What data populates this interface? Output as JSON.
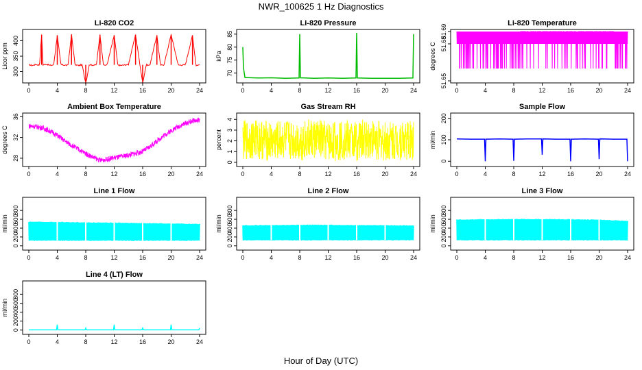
{
  "figure": {
    "title": "NWR_100625  1 Hz Diagnostics",
    "xlabel": "Hour of Day (UTC)"
  },
  "chart_data": [
    {
      "type": "line",
      "title": "Li-820 CO2",
      "ylabel": "Licor ppm",
      "color": "#ff0000",
      "xlim": [
        0,
        24
      ],
      "xticks": [
        0,
        4,
        8,
        12,
        16,
        20,
        24
      ],
      "ylim": [
        270,
        430
      ],
      "yticks": [
        300,
        350,
        400
      ],
      "x": [
        0,
        0.5,
        1,
        1.5,
        1.8,
        2,
        2.5,
        3,
        3.5,
        4,
        4.5,
        5,
        5.5,
        6,
        6.5,
        7,
        7.5,
        8,
        8.5,
        9,
        9.5,
        10,
        10.5,
        11,
        12,
        12.5,
        13,
        14,
        15,
        16,
        16.5,
        17,
        18,
        18.5,
        19,
        20,
        21,
        22,
        23,
        23.5,
        24
      ],
      "values": [
        322,
        320,
        323,
        321,
        420,
        322,
        324,
        320,
        322,
        418,
        323,
        321,
        320,
        420,
        322,
        320,
        322,
        260,
        323,
        321,
        322,
        420,
        320,
        322,
        418,
        321,
        320,
        323,
        420,
        262,
        322,
        320,
        418,
        321,
        322,
        420,
        321,
        322,
        418,
        320,
        322
      ]
    },
    {
      "type": "line",
      "title": "Li-820 Pressure",
      "ylabel": "kPa",
      "color": "#00bb00",
      "xlim": [
        0,
        24
      ],
      "xticks": [
        0,
        4,
        8,
        12,
        16,
        20,
        24
      ],
      "ylim": [
        67,
        86
      ],
      "yticks": [
        70,
        75,
        80,
        85
      ],
      "x": [
        0,
        0.1,
        0.3,
        2,
        4,
        6,
        7.9,
        8,
        8.1,
        10,
        12,
        14,
        15.9,
        16,
        16.1,
        18,
        20,
        22,
        23.9,
        24
      ],
      "values": [
        80,
        72,
        68.3,
        68.1,
        68.2,
        68.0,
        68.1,
        85,
        68.2,
        68.0,
        68.1,
        68.0,
        68.1,
        85.5,
        68.1,
        68.0,
        68.0,
        68.0,
        68.1,
        85
      ]
    },
    {
      "type": "line",
      "title": "Li-820 Temperature",
      "ylabel": "degrees C",
      "color": "#ff00ff",
      "xlim": [
        0,
        24
      ],
      "xticks": [
        0,
        4,
        8,
        12,
        16,
        20,
        24
      ],
      "ylim": [
        51.65,
        51.69
      ],
      "yticks": [
        51.65,
        51.68,
        51.69
      ],
      "x": [
        0,
        2,
        4,
        6,
        8,
        10,
        12,
        14,
        16,
        18,
        20,
        22,
        24
      ],
      "values": [
        51.66,
        51.69,
        51.66,
        51.69,
        51.66,
        51.69,
        51.66,
        51.69,
        51.66,
        51.69,
        51.66,
        51.69,
        51.68
      ]
    },
    {
      "type": "line",
      "title": "Ambient Box Temperature",
      "ylabel": "degrees C",
      "color": "#ff00ff",
      "xlim": [
        0,
        24
      ],
      "xticks": [
        0,
        4,
        8,
        12,
        16,
        20,
        24
      ],
      "ylim": [
        26.8,
        36.3
      ],
      "yticks": [
        28,
        32,
        36
      ],
      "x": [
        0,
        1,
        2,
        3,
        4,
        5,
        6,
        7,
        8,
        9,
        10,
        11,
        12,
        13,
        14,
        15,
        16,
        17,
        18,
        19,
        20,
        21,
        22,
        23,
        24
      ],
      "values": [
        34.2,
        34.1,
        33.8,
        33.2,
        32.4,
        31.4,
        30.5,
        29.7,
        28.9,
        28.2,
        27.6,
        27.8,
        28.1,
        28.3,
        28.6,
        28.9,
        29.3,
        30.2,
        31.3,
        32.4,
        33.3,
        34.1,
        34.7,
        35.2,
        35.3
      ]
    },
    {
      "type": "line",
      "title": "Gas Stream RH",
      "ylabel": "percent",
      "color": "#ffff00",
      "xlim": [
        0,
        24
      ],
      "xticks": [
        0,
        4,
        8,
        12,
        16,
        20,
        24
      ],
      "ylim": [
        -0.2,
        4.4
      ],
      "yticks": [
        0,
        1,
        2,
        3,
        4
      ],
      "x": [
        0,
        2,
        4,
        6,
        8,
        10,
        12,
        14,
        16,
        18,
        20,
        22,
        24
      ],
      "values": [
        2.0,
        2.2,
        1.9,
        2.1,
        2.0,
        2.2,
        1.9,
        2.1,
        2.0,
        2.2,
        1.9,
        2.1,
        2.0
      ]
    },
    {
      "type": "line",
      "title": "Sample Flow",
      "ylabel": "ml/min",
      "color": "#0000ff",
      "xlim": [
        0,
        24
      ],
      "xticks": [
        0,
        4,
        8,
        12,
        16,
        20,
        24
      ],
      "ylim": [
        -15,
        215
      ],
      "yticks": [
        0,
        100,
        200
      ],
      "x": [
        0,
        2,
        3.9,
        4,
        4.1,
        6,
        7.9,
        8,
        8.1,
        10,
        11.9,
        12,
        12.1,
        14,
        15.9,
        16,
        16.1,
        18,
        19.9,
        20,
        20.1,
        22,
        23.9,
        24
      ],
      "values": [
        104,
        103,
        103,
        0,
        103,
        104,
        103,
        2,
        103,
        104,
        104,
        30,
        104,
        103,
        103,
        0,
        103,
        104,
        103,
        10,
        104,
        103,
        103,
        0
      ]
    },
    {
      "type": "area",
      "title": "Line 1 Flow",
      "ylabel": "ml/min",
      "color": "#00ffff",
      "xlim": [
        0,
        24
      ],
      "xticks": [
        0,
        4,
        8,
        12,
        16,
        20,
        24
      ],
      "ylim": [
        -50,
        1050
      ],
      "yticks": [
        0,
        200,
        400,
        600,
        800
      ],
      "x": [
        0,
        4,
        8,
        12,
        16,
        20,
        24
      ],
      "values": [
        540,
        535,
        525,
        520,
        510,
        500,
        490
      ],
      "baseline": 120
    },
    {
      "type": "area",
      "title": "Line 2 Flow",
      "ylabel": "ml/min",
      "color": "#00ffff",
      "xlim": [
        0,
        24
      ],
      "xticks": [
        0,
        4,
        8,
        12,
        16,
        20,
        24
      ],
      "ylim": [
        -50,
        1050
      ],
      "yticks": [
        0,
        200,
        400,
        600,
        800
      ],
      "x": [
        0,
        4,
        8,
        12,
        16,
        20,
        24
      ],
      "values": [
        460,
        465,
        470,
        470,
        465,
        460,
        455
      ],
      "baseline": 130
    },
    {
      "type": "area",
      "title": "Line 3 Flow",
      "ylabel": "ml/min",
      "color": "#00ffff",
      "xlim": [
        0,
        24
      ],
      "xticks": [
        0,
        4,
        8,
        12,
        16,
        20,
        24
      ],
      "ylim": [
        -50,
        1050
      ],
      "yticks": [
        0,
        200,
        400,
        600,
        800
      ],
      "x": [
        0,
        4,
        8,
        12,
        16,
        20,
        24
      ],
      "values": [
        590,
        595,
        600,
        600,
        595,
        585,
        560
      ],
      "baseline": 130
    },
    {
      "type": "line",
      "title": "Line 4 (LT) Flow",
      "ylabel": "ml/min",
      "color": "#00ffff",
      "xlim": [
        0,
        24
      ],
      "xticks": [
        0,
        4,
        8,
        12,
        16,
        20,
        24
      ],
      "ylim": [
        -50,
        1050
      ],
      "yticks": [
        0,
        200,
        400,
        600,
        800
      ],
      "x": [
        0,
        3.9,
        4,
        4.1,
        7.9,
        8,
        8.1,
        11.9,
        12,
        12.1,
        15.9,
        16,
        16.1,
        19.9,
        20,
        20.1,
        23.9,
        24
      ],
      "values": [
        5,
        5,
        120,
        5,
        5,
        45,
        5,
        5,
        120,
        5,
        5,
        45,
        5,
        5,
        120,
        5,
        5,
        45
      ]
    }
  ]
}
